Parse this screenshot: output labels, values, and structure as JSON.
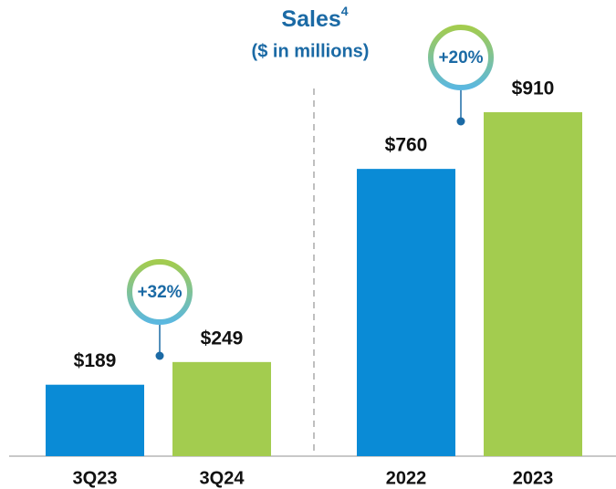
{
  "chart_data": {
    "type": "bar",
    "title": "Sales",
    "title_footnote": "4",
    "subtitle": "($ in millions)",
    "categories": [
      "3Q23",
      "3Q24",
      "2022",
      "2023"
    ],
    "values": [
      189,
      249,
      760,
      910
    ],
    "value_labels": [
      "$189",
      "$249",
      "$760",
      "$910"
    ],
    "colors": [
      "#0a8bd6",
      "#a3cc4f",
      "#0a8bd6",
      "#a3cc4f"
    ],
    "annotations": [
      "+32%",
      "+20%"
    ]
  }
}
